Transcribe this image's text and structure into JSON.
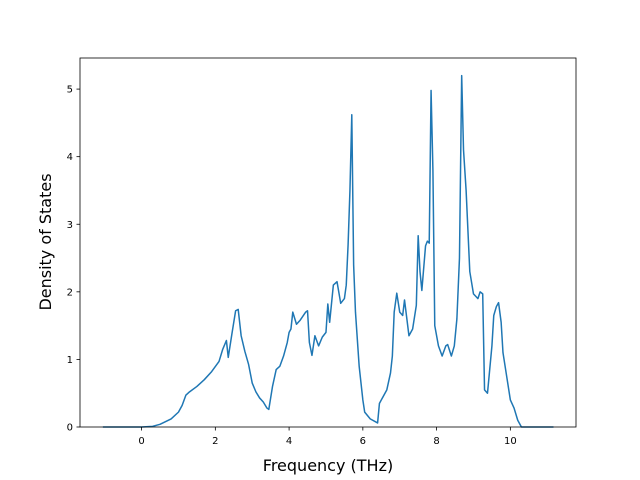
{
  "chart_data": {
    "type": "line",
    "x_label": "Frequency (THz)",
    "y_label": "Density of States",
    "color": "#1f77b4",
    "x": [
      -1.05,
      0,
      0.3,
      0.5,
      0.8,
      1.0,
      1.1,
      1.2,
      1.3,
      1.5,
      1.7,
      1.9,
      2.1,
      2.2,
      2.3,
      2.35,
      2.45,
      2.55,
      2.62,
      2.7,
      2.8,
      2.9,
      3.0,
      3.1,
      3.2,
      3.3,
      3.4,
      3.45,
      3.55,
      3.65,
      3.75,
      3.85,
      3.95,
      4.0,
      4.05,
      4.1,
      4.2,
      4.3,
      4.45,
      4.5,
      4.55,
      4.62,
      4.7,
      4.8,
      4.9,
      5.0,
      5.05,
      5.1,
      5.2,
      5.3,
      5.4,
      5.5,
      5.55,
      5.6,
      5.65,
      5.7,
      5.75,
      5.8,
      5.9,
      6.0,
      6.05,
      6.2,
      6.4,
      6.45,
      6.55,
      6.65,
      6.75,
      6.8,
      6.85,
      6.92,
      7.0,
      7.08,
      7.13,
      7.25,
      7.35,
      7.45,
      7.5,
      7.55,
      7.6,
      7.7,
      7.75,
      7.8,
      7.85,
      7.9,
      7.95,
      8.05,
      8.15,
      8.25,
      8.3,
      8.4,
      8.48,
      8.55,
      8.62,
      8.68,
      8.73,
      8.8,
      8.9,
      9.0,
      9.12,
      9.18,
      9.25,
      9.3,
      9.38,
      9.5,
      9.55,
      9.62,
      9.68,
      9.75,
      9.8,
      9.9,
      10.0,
      10.1,
      10.2,
      10.3,
      11.17
    ],
    "values": [
      0,
      0,
      0.01,
      0.04,
      0.12,
      0.22,
      0.32,
      0.47,
      0.52,
      0.6,
      0.7,
      0.82,
      0.97,
      1.15,
      1.28,
      1.03,
      1.38,
      1.72,
      1.74,
      1.35,
      1.12,
      0.93,
      0.65,
      0.52,
      0.43,
      0.37,
      0.28,
      0.26,
      0.6,
      0.85,
      0.9,
      1.05,
      1.25,
      1.4,
      1.45,
      1.7,
      1.52,
      1.58,
      1.7,
      1.72,
      1.25,
      1.06,
      1.35,
      1.2,
      1.33,
      1.4,
      1.82,
      1.55,
      2.1,
      2.15,
      1.83,
      1.9,
      2.1,
      2.7,
      3.5,
      4.62,
      2.4,
      1.7,
      0.9,
      0.4,
      0.22,
      0.12,
      0.06,
      0.35,
      0.45,
      0.55,
      0.8,
      1.05,
      1.7,
      1.98,
      1.7,
      1.65,
      1.88,
      1.35,
      1.45,
      1.8,
      2.83,
      2.3,
      2.02,
      2.68,
      2.75,
      2.72,
      4.98,
      3.8,
      1.5,
      1.2,
      1.05,
      1.2,
      1.22,
      1.05,
      1.2,
      1.6,
      2.5,
      5.2,
      4.1,
      3.5,
      2.3,
      1.97,
      1.9,
      2.0,
      1.97,
      0.55,
      0.5,
      1.2,
      1.65,
      1.78,
      1.84,
      1.55,
      1.1,
      0.75,
      0.4,
      0.28,
      0.1,
      0.0,
      0
    ],
    "xlim": [
      -1.67,
      11.78
    ],
    "ylim": [
      0,
      5.46
    ],
    "xticks": [
      0,
      2,
      4,
      6,
      8,
      10
    ],
    "yticks": [
      0,
      1,
      2,
      3,
      4,
      5
    ]
  }
}
